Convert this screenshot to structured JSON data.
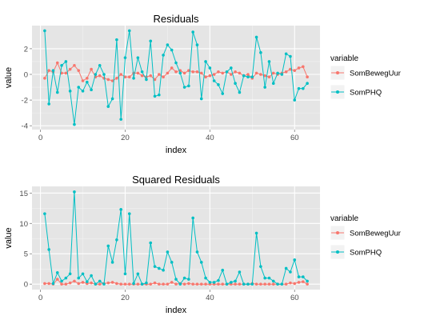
{
  "colors": {
    "panel": "#e5e5e5",
    "grid_major": "#ffffff",
    "grid_minor": "#f2f2f2",
    "axis_text": "#4d4d4d",
    "somb": "#f8766d",
    "somphq": "#00bfc4"
  },
  "chart_data": [
    {
      "type": "line",
      "title": "Residuals",
      "xlabel": "index",
      "ylabel": "value",
      "xlim": [
        -2,
        66
      ],
      "ylim": [
        -4.3,
        3.8
      ],
      "xticks": [
        0,
        20,
        40,
        60
      ],
      "yticks": [
        -4,
        -2,
        0,
        2
      ],
      "xtick_labels": [
        "0",
        "20",
        "40",
        "60"
      ],
      "ytick_labels": [
        "-4",
        "-2",
        "0",
        "2"
      ],
      "grid": true,
      "legend": {
        "title": "variable",
        "placement": "right"
      },
      "x": [
        1,
        2,
        3,
        4,
        5,
        6,
        7,
        8,
        9,
        10,
        11,
        12,
        13,
        14,
        15,
        16,
        17,
        18,
        19,
        20,
        21,
        22,
        23,
        24,
        25,
        26,
        27,
        28,
        29,
        30,
        31,
        32,
        33,
        34,
        35,
        36,
        37,
        38,
        39,
        40,
        41,
        42,
        43,
        44,
        45,
        46,
        47,
        48,
        49,
        50,
        51,
        52,
        53,
        54,
        55,
        56,
        57,
        58,
        59,
        60,
        61,
        62,
        63
      ],
      "series": [
        {
          "name": "SomBewegUur",
          "values": [
            -0.3,
            0.3,
            0.2,
            0.9,
            0.1,
            0.1,
            0.4,
            0.7,
            0.3,
            -0.5,
            -0.3,
            0.4,
            -0.2,
            -0.1,
            -0.3,
            -0.4,
            -0.5,
            -0.3,
            0.0,
            -0.2,
            -0.2,
            0.1,
            0.1,
            -0.1,
            -0.2,
            -0.1,
            -0.4,
            0.0,
            -0.2,
            0.1,
            0.5,
            0.2,
            0.3,
            0.1,
            0.3,
            0.2,
            0.2,
            0.1,
            -0.2,
            -0.1,
            0.0,
            0.2,
            0.1,
            0.2,
            0.0,
            0.2,
            0.1,
            -0.1,
            0.0,
            -0.3,
            0.1,
            0.0,
            -0.1,
            -0.2,
            0.1,
            0.0,
            0.1,
            0.2,
            0.4,
            0.3,
            0.5,
            0.6,
            -0.2
          ]
        },
        {
          "name": "SomPHQ",
          "values": [
            3.4,
            -2.3,
            0.3,
            -1.4,
            0.7,
            1.0,
            -1.3,
            -3.9,
            -1.0,
            -1.3,
            -0.6,
            -1.2,
            0.0,
            0.7,
            0.0,
            -2.5,
            -1.9,
            2.7,
            -3.5,
            1.3,
            3.4,
            -0.3,
            1.3,
            0.2,
            -0.4,
            2.6,
            -1.7,
            -1.6,
            1.5,
            2.3,
            1.9,
            0.9,
            0.1,
            -1.0,
            -0.9,
            3.3,
            2.3,
            -1.9,
            1.0,
            0.5,
            -0.5,
            -0.8,
            -1.5,
            0.2,
            0.5,
            -0.7,
            -1.4,
            -0.1,
            -0.2,
            -0.2,
            2.9,
            1.7,
            -1.0,
            1.0,
            -0.7,
            0.1,
            0.0,
            1.6,
            1.4,
            -2.0,
            -1.1,
            -1.1,
            -0.7
          ]
        }
      ]
    },
    {
      "type": "line",
      "title": "Squared Residuals",
      "xlabel": "index",
      "ylabel": "value",
      "xlim": [
        -2,
        66
      ],
      "ylim": [
        -0.9,
        16.1
      ],
      "xticks": [
        0,
        20,
        40,
        60
      ],
      "yticks": [
        0,
        5,
        10,
        15
      ],
      "xtick_labels": [
        "0",
        "20",
        "40",
        "60"
      ],
      "ytick_labels": [
        "0",
        "5",
        "10",
        "15"
      ],
      "grid": true,
      "legend": {
        "title": "variable",
        "placement": "right"
      },
      "x": [
        1,
        2,
        3,
        4,
        5,
        6,
        7,
        8,
        9,
        10,
        11,
        12,
        13,
        14,
        15,
        16,
        17,
        18,
        19,
        20,
        21,
        22,
        23,
        24,
        25,
        26,
        27,
        28,
        29,
        30,
        31,
        32,
        33,
        34,
        35,
        36,
        37,
        38,
        39,
        40,
        41,
        42,
        43,
        44,
        45,
        46,
        47,
        48,
        49,
        50,
        51,
        52,
        53,
        54,
        55,
        56,
        57,
        58,
        59,
        60,
        61,
        62,
        63
      ],
      "series": [
        {
          "name": "SomBewegUur",
          "values": [
            0.1,
            0.1,
            0.0,
            0.8,
            0.0,
            0.0,
            0.2,
            0.5,
            0.1,
            0.3,
            0.1,
            0.2,
            0.0,
            0.0,
            0.1,
            0.2,
            0.3,
            0.1,
            0.0,
            0.0,
            0.0,
            0.0,
            0.0,
            0.0,
            0.0,
            0.0,
            0.2,
            0.0,
            0.0,
            0.0,
            0.3,
            0.0,
            0.1,
            0.0,
            0.1,
            0.0,
            0.0,
            0.0,
            0.0,
            0.0,
            0.0,
            0.0,
            0.0,
            0.0,
            0.0,
            0.0,
            0.0,
            0.0,
            0.0,
            0.1,
            0.0,
            0.0,
            0.0,
            0.0,
            0.0,
            0.0,
            0.0,
            0.0,
            0.2,
            0.1,
            0.3,
            0.4,
            0.0
          ]
        },
        {
          "name": "SomPHQ",
          "values": [
            11.6,
            5.7,
            0.1,
            1.9,
            0.5,
            1.0,
            1.7,
            15.2,
            1.0,
            1.7,
            0.4,
            1.4,
            0.0,
            0.5,
            0.0,
            6.3,
            3.6,
            7.3,
            12.3,
            1.7,
            11.6,
            0.1,
            1.7,
            0.0,
            0.2,
            6.8,
            2.9,
            2.6,
            2.3,
            5.3,
            3.6,
            0.8,
            0.0,
            1.0,
            0.8,
            10.9,
            5.3,
            3.6,
            1.0,
            0.3,
            0.3,
            0.6,
            2.3,
            0.0,
            0.3,
            0.5,
            2.0,
            0.0,
            0.0,
            0.0,
            8.4,
            2.9,
            1.0,
            1.0,
            0.5,
            0.0,
            0.0,
            2.6,
            2.0,
            4.0,
            1.2,
            1.2,
            0.5
          ]
        }
      ]
    }
  ]
}
